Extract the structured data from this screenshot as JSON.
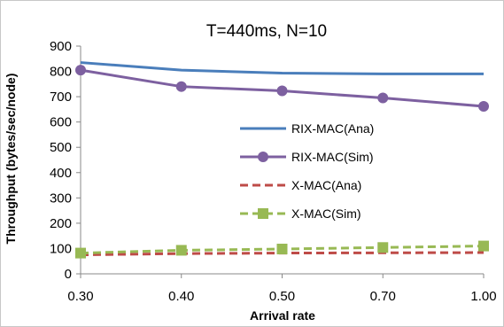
{
  "chart_data": {
    "type": "line",
    "title": "T=440ms, N=10",
    "xlabel": "Arrival rate",
    "ylabel": "Throughput (bytes/sec/node)",
    "categories": [
      "0.30",
      "0.40",
      "0.50",
      "0.70",
      "1.00"
    ],
    "ylim": [
      0,
      900
    ],
    "yticks": [
      0,
      100,
      200,
      300,
      400,
      500,
      600,
      700,
      800,
      900
    ],
    "grid": false,
    "legend_position": "right",
    "series": [
      {
        "name": "RIX-MAC(Ana)",
        "values": [
          835,
          805,
          793,
          790,
          790
        ],
        "color": "#4a7ebb",
        "style": "solid",
        "marker": "none"
      },
      {
        "name": "RIX-MAC(Sim)",
        "values": [
          805,
          740,
          723,
          695,
          662
        ],
        "color": "#7d60a0",
        "style": "solid",
        "marker": "circle"
      },
      {
        "name": "X-MAC(Ana)",
        "values": [
          75,
          80,
          82,
          83,
          84
        ],
        "color": "#be4b48",
        "style": "dashed",
        "marker": "none"
      },
      {
        "name": "X-MAC(Sim)",
        "values": [
          82,
          93,
          98,
          104,
          110
        ],
        "color": "#98b954",
        "style": "dashed",
        "marker": "square"
      }
    ]
  }
}
